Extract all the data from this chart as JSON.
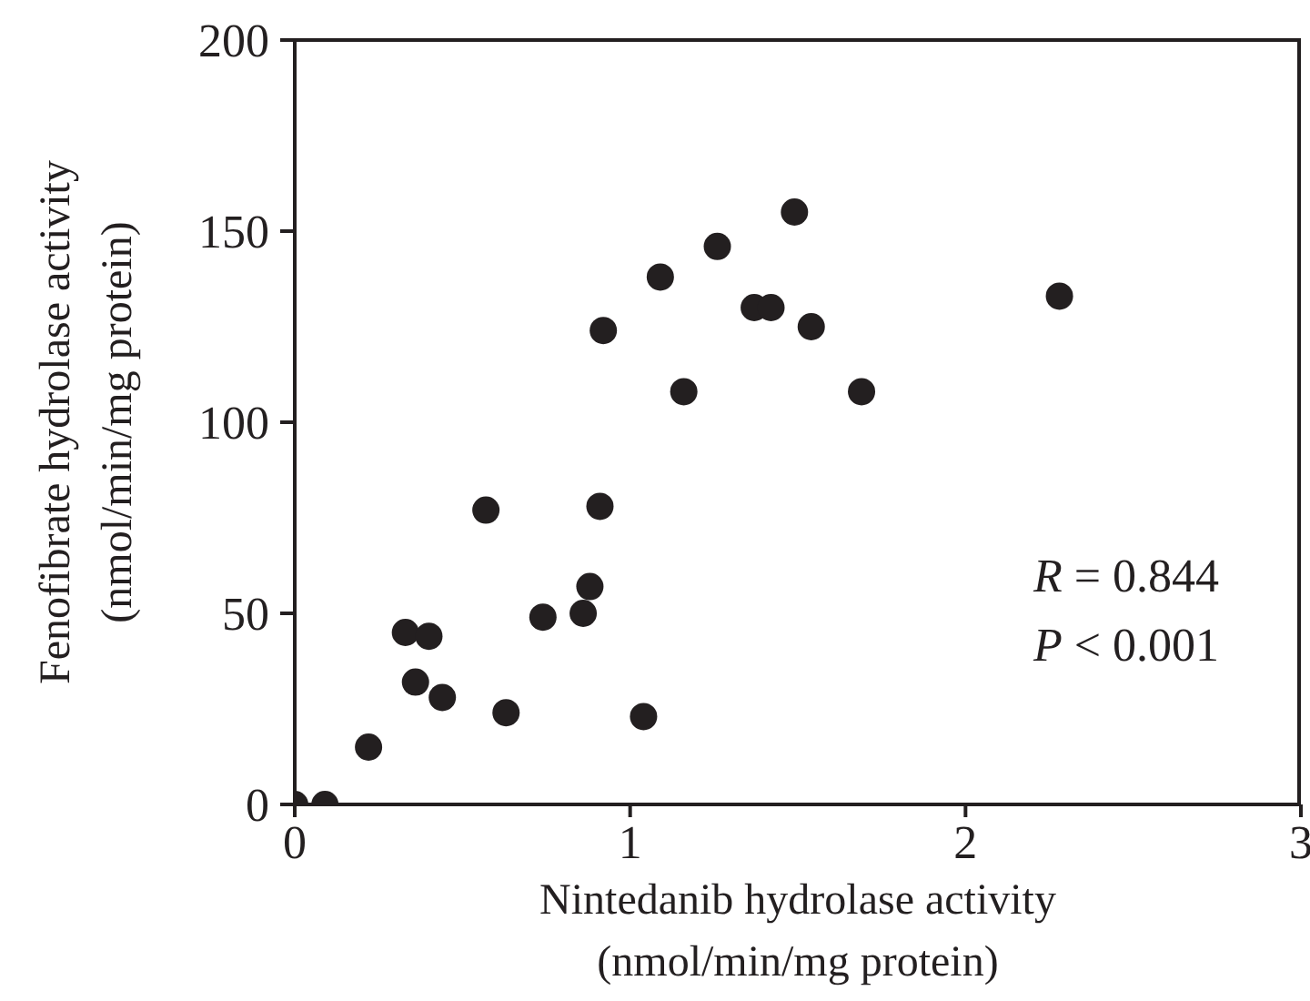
{
  "chart_data": {
    "type": "scatter",
    "xlabel": "Nintedanib hydrolase activity\n(nmol/min/mg protein)",
    "ylabel": "Fenofibrate hydrolase activity\n(nmol/min/mg protein)",
    "x": [
      0,
      0.09,
      0.22,
      0.33,
      0.4,
      0.36,
      0.44,
      0.57,
      0.63,
      0.74,
      0.86,
      0.88,
      0.91,
      0.92,
      1.04,
      1.09,
      1.16,
      1.26,
      1.37,
      1.42,
      1.49,
      1.54,
      1.69,
      2.28
    ],
    "values": [
      0,
      0,
      15,
      45,
      44,
      32,
      28,
      77,
      24,
      49,
      50,
      57,
      78,
      124,
      23,
      138,
      108,
      146,
      130,
      130,
      155,
      125,
      108,
      133
    ],
    "color": "#231f20",
    "marker": "circle",
    "xlim": [
      0,
      3
    ],
    "xticks": [
      0,
      1,
      2,
      3
    ],
    "ylim": [
      0,
      200
    ],
    "yticks": [
      0,
      50,
      100,
      150,
      200
    ],
    "grid": false,
    "legend": false,
    "annotations": [
      "R = 0.844",
      "P < 0.001"
    ]
  }
}
